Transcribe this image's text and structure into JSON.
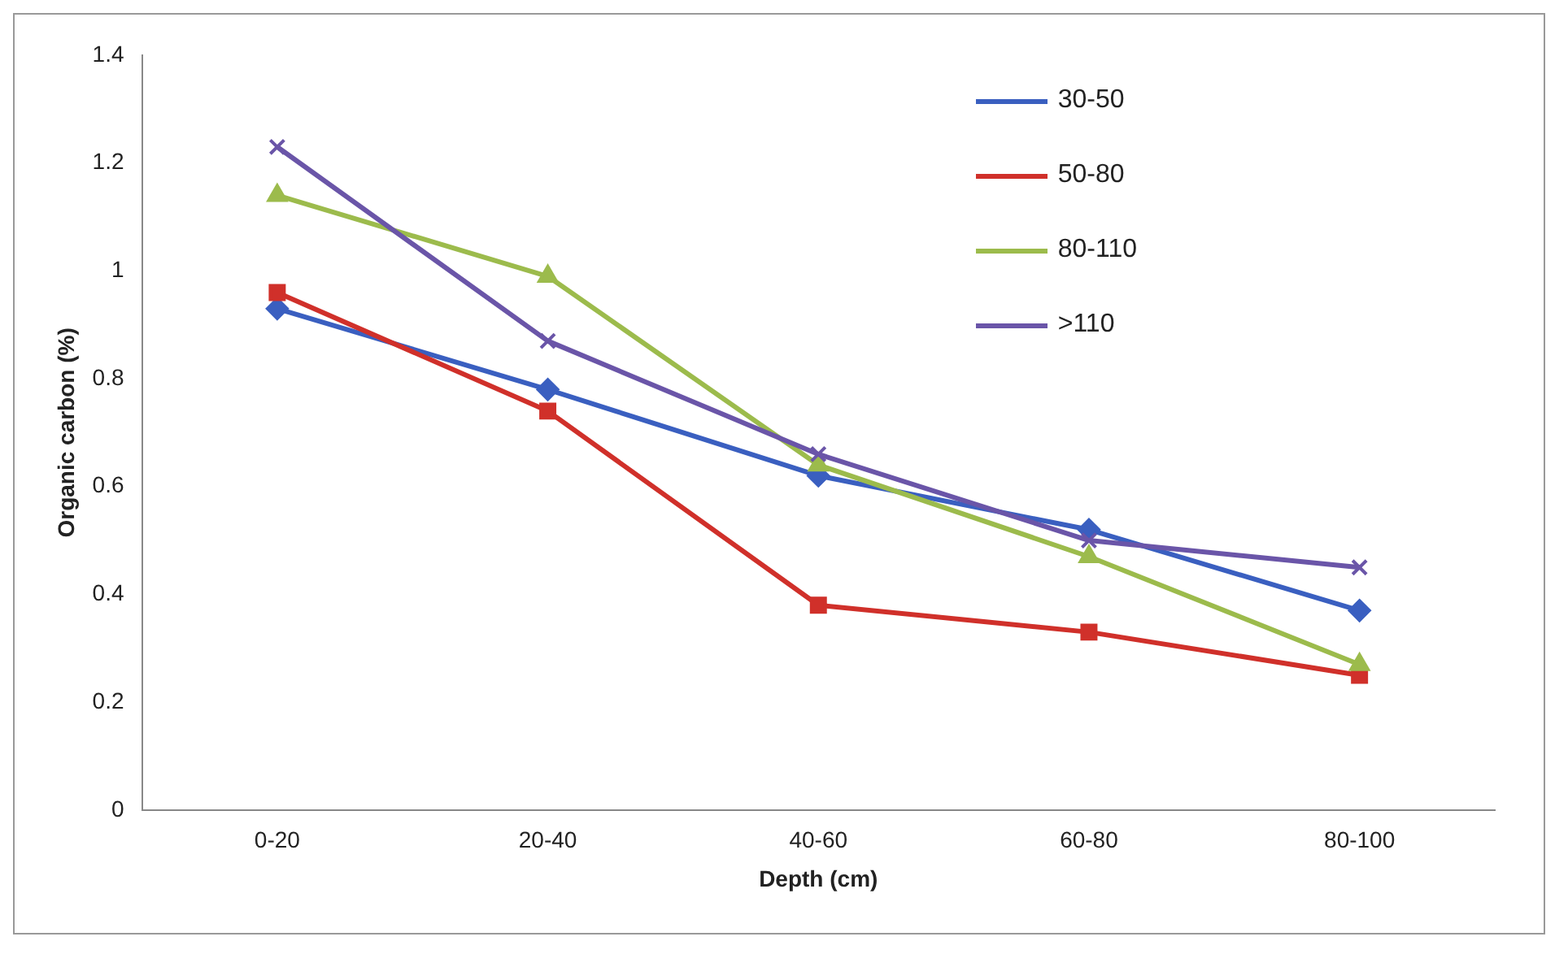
{
  "chart_data": {
    "type": "line",
    "xlabel": "Depth (cm)",
    "ylabel": "Organic carbon (%)",
    "categories": [
      "0-20",
      "20-40",
      "40-60",
      "60-80",
      "80-100"
    ],
    "series": [
      {
        "name": "30-50",
        "color": "#3a5fc0",
        "marker": "diamond",
        "values": [
          0.93,
          0.78,
          0.62,
          0.52,
          0.37
        ]
      },
      {
        "name": "50-80",
        "color": "#d0302a",
        "marker": "square",
        "values": [
          0.96,
          0.74,
          0.38,
          0.33,
          0.25
        ]
      },
      {
        "name": "80-110",
        "color": "#9cbb4c",
        "marker": "triangle",
        "values": [
          1.14,
          0.99,
          0.64,
          0.47,
          0.27
        ]
      },
      {
        "name": ">110",
        "color": "#6a55a8",
        "marker": "cross",
        "values": [
          1.23,
          0.87,
          0.66,
          0.5,
          0.45
        ]
      }
    ],
    "ylim": [
      0,
      1.4
    ],
    "yticks": [
      0,
      0.2,
      0.4,
      0.6,
      0.8,
      1,
      1.2,
      1.4
    ],
    "grid": false,
    "legend": "top right",
    "line_style": "solid"
  }
}
